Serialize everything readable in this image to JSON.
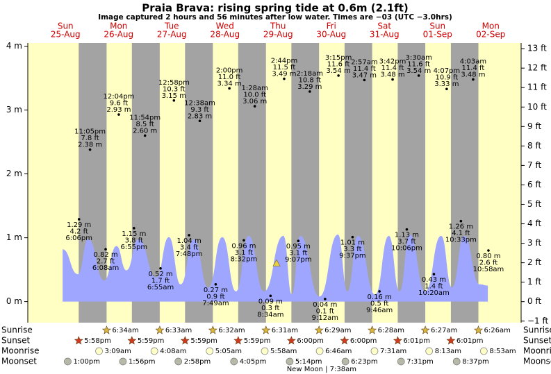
{
  "chart_data": {
    "type": "tide",
    "title": "Praia Brava: rising  spring tide at 0.6m (2.1ft)",
    "subtitle": "Image captured 2 hours and 56 minutes after low water. Times are −03 (UTC −3.0hrs)",
    "ylim": [
      -0.33,
      4.05
    ],
    "yticks": [
      {
        "value": 0,
        "label": "0 m"
      },
      {
        "value": 1,
        "label": "1 m"
      },
      {
        "value": 2,
        "label": "2 m"
      },
      {
        "value": 3,
        "label": "3 m"
      },
      {
        "value": 4,
        "label": "4 m"
      }
    ],
    "y2lim": [
      -1.08,
      13.29
    ],
    "y2ticks": [
      {
        "value": -1,
        "label": "−1 ft"
      },
      {
        "value": 0,
        "label": "0 ft"
      },
      {
        "value": 1,
        "label": "1 ft"
      },
      {
        "value": 2,
        "label": "2 ft"
      },
      {
        "value": 3,
        "label": "3 ft"
      },
      {
        "value": 4,
        "label": "4 ft"
      },
      {
        "value": 5,
        "label": "5 ft"
      },
      {
        "value": 6,
        "label": "6 ft"
      },
      {
        "value": 7,
        "label": "7 ft"
      },
      {
        "value": 8,
        "label": "8 ft"
      },
      {
        "value": 9,
        "label": "9 ft"
      },
      {
        "value": 10,
        "label": "10 ft"
      },
      {
        "value": 11,
        "label": "11 ft"
      },
      {
        "value": 12,
        "label": "12 ft"
      },
      {
        "value": 13,
        "label": "13 ft"
      }
    ],
    "current": {
      "x": 107.3,
      "value": 0.6
    },
    "area": {
      "color": "#9ea6ff",
      "x": [
        10.7,
        17.6,
        22.3,
        29.5,
        35,
        39.5,
        45,
        53,
        58.7,
        64,
        70,
        76.5,
        82.8,
        89,
        94.7,
        101.6,
        110.4,
        114.2,
        118,
        126.7,
        135,
        139.3,
        144,
        151.8,
        158,
        162.8,
        167.5,
        174.4,
        181.6,
        186.5,
        192,
        199,
        202.7
      ],
      "values": [
        0.82,
        0.43,
        0.98,
        0.33,
        0.87,
        0.49,
        0.98,
        0.38,
        1.01,
        0.27,
        0.98,
        0.22,
        1.01,
        0.16,
        1.03,
        0.16,
        1.03,
        0.11,
        1.03,
        0.08,
        1.05,
        0.16,
        1.03,
        0.11,
        1.03,
        0.16,
        1.05,
        0.16,
        1.03,
        0.22,
        1.03,
        0.27,
        0.25
      ]
    },
    "rows": [
      "Sunrise",
      "Sunset",
      "Moonrise",
      "Moonset"
    ],
    "days": [
      {
        "name": "Sun",
        "date": "25-Aug",
        "tides": [
          {
            "time": "6:06pm",
            "value": 1.29,
            "label": "1.29 m",
            "ft": "4.2 ft"
          },
          {
            "time": "11:05pm",
            "value": 2.38,
            "label": "2.38 m",
            "ft": "7.8 ft"
          }
        ],
        "sunset": "5:58pm",
        "moonset": "1:00pm"
      },
      {
        "name": "Mon",
        "date": "26-Aug",
        "tides": [
          {
            "time": "6:08am",
            "value": 0.82,
            "label": "0.82 m",
            "ft": "2.7 ft"
          },
          {
            "time": "12:04pm",
            "value": 2.93,
            "label": "2.93 m",
            "ft": "9.6 ft"
          },
          {
            "time": "6:55pm",
            "value": 1.15,
            "label": "1.15 m",
            "ft": "3.8 ft"
          },
          {
            "time": "11:54pm",
            "value": 2.6,
            "label": "2.60 m",
            "ft": "8.5 ft"
          }
        ],
        "sunrise": "6:34am",
        "sunset": "5:59pm",
        "moonrise": "3:09am",
        "moonset": "1:56pm"
      },
      {
        "name": "Tue",
        "date": "27-Aug",
        "tides": [
          {
            "time": "6:55am",
            "value": 0.52,
            "label": "0.52 m",
            "ft": "1.7 ft"
          },
          {
            "time": "12:58pm",
            "value": 3.15,
            "label": "3.15 m",
            "ft": "10.3 ft"
          },
          {
            "time": "7:48pm",
            "value": 1.04,
            "label": "1.04 m",
            "ft": "3.4 ft"
          }
        ],
        "sunrise": "6:33am",
        "sunset": "5:59pm",
        "moonrise": "4:08am",
        "moonset": "2:58pm"
      },
      {
        "name": "Wed",
        "date": "28-Aug",
        "tides": [
          {
            "time": "12:38am",
            "value": 2.83,
            "label": "2.83 m",
            "ft": "9.3 ft"
          },
          {
            "time": "7:49am",
            "value": 0.27,
            "label": "0.27 m",
            "ft": "0.9 ft"
          },
          {
            "time": "2:00pm",
            "value": 3.34,
            "label": "3.34 m",
            "ft": "11.0 ft"
          },
          {
            "time": "8:32pm",
            "value": 0.96,
            "label": "0.96 m",
            "ft": "3.1 ft"
          }
        ],
        "sunrise": "6:32am",
        "sunset": "5:59pm",
        "moonrise": "5:05am",
        "moonset": "4:05pm"
      },
      {
        "name": "Thu",
        "date": "29-Aug",
        "tides": [
          {
            "time": "1:28am",
            "value": 3.06,
            "label": "3.06 m",
            "ft": "10.0 ft"
          },
          {
            "time": "8:34am",
            "value": 0.09,
            "label": "0.09 m",
            "ft": "0.3 ft"
          },
          {
            "time": "2:44pm",
            "value": 3.49,
            "label": "3.49 m",
            "ft": "11.5 ft"
          },
          {
            "time": "9:07pm",
            "value": 0.95,
            "label": "0.95 m",
            "ft": "3.1 ft"
          }
        ],
        "sunrise": "6:31am",
        "sunset": "6:00pm",
        "moonrise": "5:58am",
        "moonset": "5:14pm"
      },
      {
        "name": "Fri",
        "date": "30-Aug",
        "tides": [
          {
            "time": "2:18am",
            "value": 3.29,
            "label": "3.29 m",
            "ft": "10.8 ft"
          },
          {
            "time": "9:12am",
            "value": 0.04,
            "label": "0.04 m",
            "ft": "0.1 ft"
          },
          {
            "time": "3:15pm",
            "value": 3.54,
            "label": "3.54 m",
            "ft": "11.6 ft"
          },
          {
            "time": "9:37pm",
            "value": 1.01,
            "label": "1.01 m",
            "ft": "3.3 ft"
          }
        ],
        "sunrise": "6:29am",
        "sunset": "6:00pm",
        "moonrise": "6:46am",
        "moonset": "6:23pm",
        "moon_phase": "New Moon | 7:38am"
      },
      {
        "name": "Sat",
        "date": "31-Aug",
        "tides": [
          {
            "time": "2:57am",
            "value": 3.47,
            "label": "3.47 m",
            "ft": "11.4 ft"
          },
          {
            "time": "9:46am",
            "value": 0.16,
            "label": "0.16 m",
            "ft": "0.5 ft"
          },
          {
            "time": "3:42pm",
            "value": 3.48,
            "label": "3.48 m",
            "ft": "11.4 ft"
          },
          {
            "time": "10:06pm",
            "value": 1.13,
            "label": "1.13 m",
            "ft": "3.7 ft"
          }
        ],
        "sunrise": "6:28am",
        "sunset": "6:01pm",
        "moonrise": "7:31am",
        "moonset": "7:31pm"
      },
      {
        "name": "Sun",
        "date": "01-Sep",
        "tides": [
          {
            "time": "3:30am",
            "value": 3.54,
            "label": "3.54 m",
            "ft": "11.6 ft"
          },
          {
            "time": "10:20am",
            "value": 0.43,
            "label": "0.43 m",
            "ft": "1.4 ft"
          },
          {
            "time": "4:07pm",
            "value": 3.33,
            "label": "3.33 m",
            "ft": "10.9 ft"
          },
          {
            "time": "10:33pm",
            "value": 1.26,
            "label": "1.26 m",
            "ft": "4.1 ft"
          }
        ],
        "sunrise": "6:27am",
        "sunset": "6:01pm",
        "moonrise": "8:13am",
        "moonset": "8:37pm"
      },
      {
        "name": "Mon",
        "date": "02-Sep",
        "tides": [
          {
            "time": "4:03am",
            "value": 3.48,
            "label": "3.48 m",
            "ft": "11.4 ft"
          },
          {
            "time": "10:58am",
            "value": 0.8,
            "label": "0.80 m",
            "ft": "2.6 ft"
          }
        ],
        "sunrise": "6:26am",
        "moonrise": "8:53am"
      }
    ]
  }
}
